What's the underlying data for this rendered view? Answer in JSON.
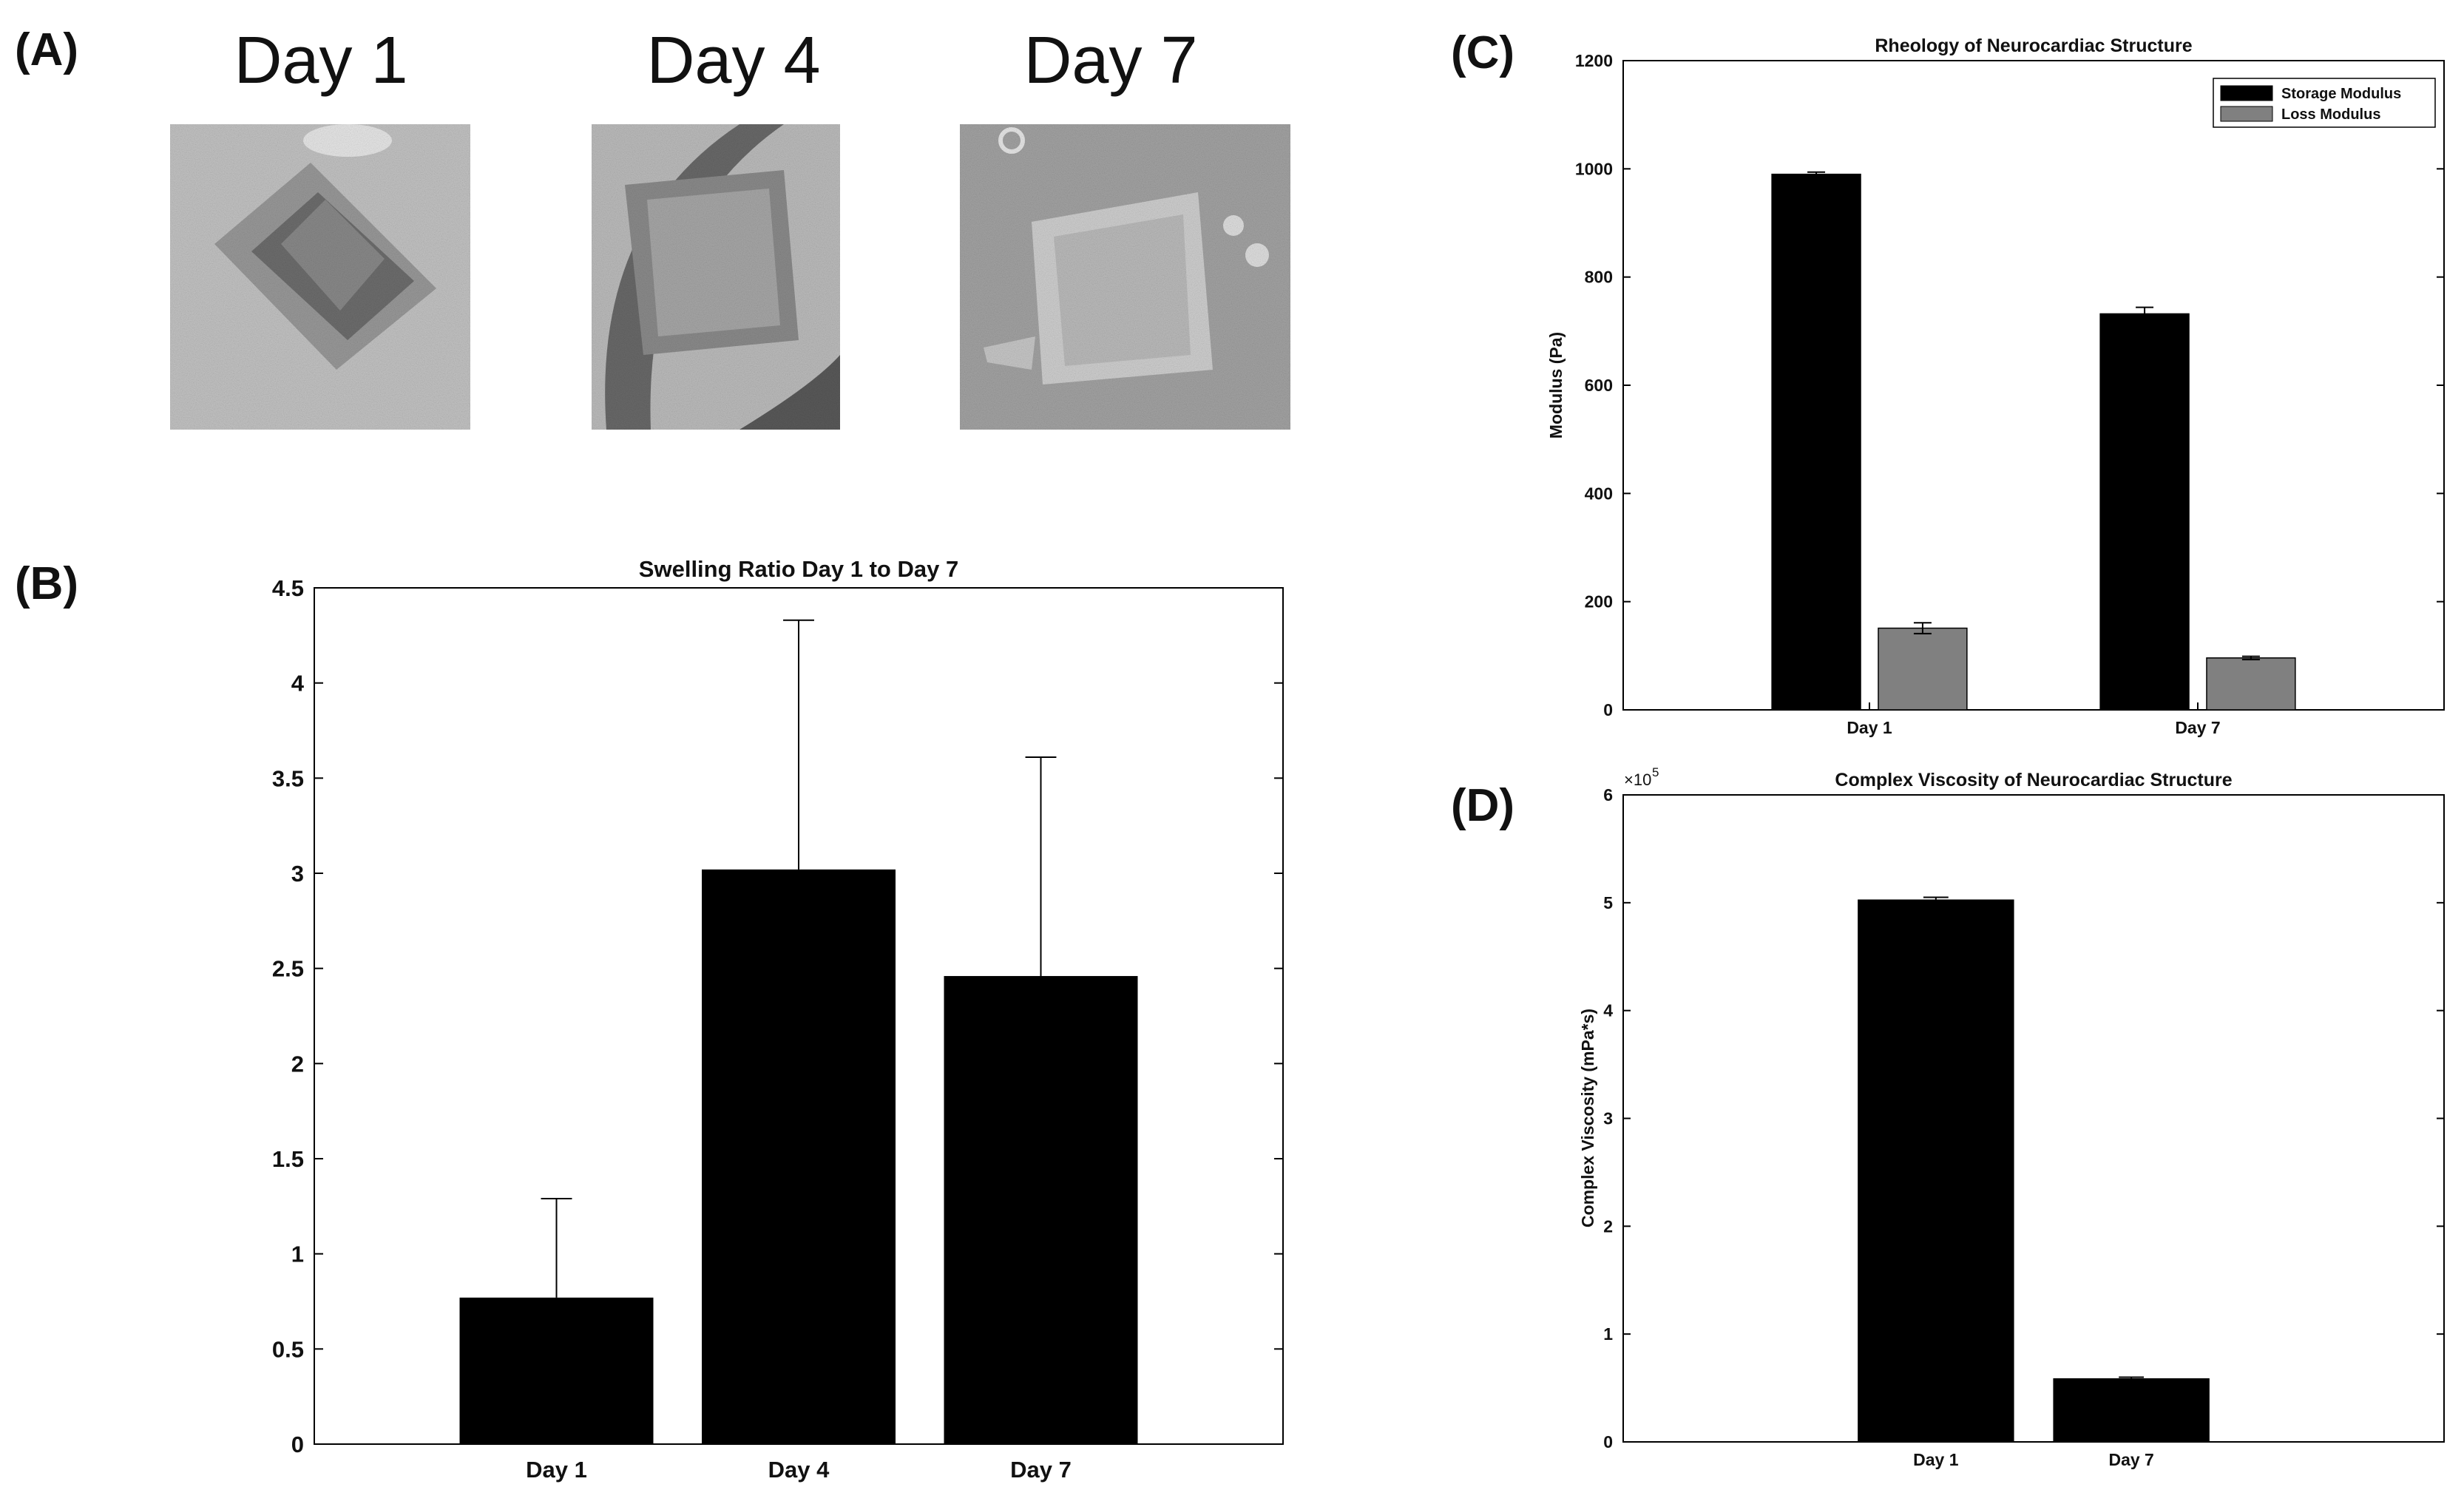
{
  "panels": {
    "a_label": "(A)",
    "b_label": "(B)",
    "c_label": "(C)",
    "d_label": "(D)"
  },
  "photos": [
    {
      "label": "Day 1"
    },
    {
      "label": "Day 4"
    },
    {
      "label": "Day 7"
    }
  ],
  "chart_data": [
    {
      "id": "B",
      "type": "bar",
      "title": "Swelling Ratio Day 1 to Day 7",
      "xlabel": "",
      "ylabel": "",
      "categories": [
        "Day 1",
        "Day 4",
        "Day 7"
      ],
      "values": [
        0.77,
        3.02,
        2.46
      ],
      "errors": [
        0.52,
        1.31,
        1.15
      ],
      "ylim": [
        0,
        4.5
      ],
      "yticks": [
        "0",
        "0.5",
        "1",
        "1.5",
        "2",
        "2.5",
        "3",
        "3.5",
        "4",
        "4.5"
      ],
      "colors": {
        "bar": "#000000"
      }
    },
    {
      "id": "C",
      "type": "bar",
      "title": "Rheology of Neurocardiac Structure",
      "xlabel": "",
      "ylabel": "Modulus (Pa)",
      "categories": [
        "Day 1",
        "Day 7"
      ],
      "series": [
        {
          "name": "Storage Modulus",
          "values": [
            990,
            732
          ],
          "errors": [
            4,
            12
          ],
          "color": "#000000"
        },
        {
          "name": "Loss Modulus",
          "values": [
            151,
            96
          ],
          "errors": [
            10,
            3
          ],
          "color": "#808080"
        }
      ],
      "ylim": [
        0,
        1200
      ],
      "yticks": [
        "0",
        "200",
        "400",
        "600",
        "800",
        "1000",
        "1200"
      ],
      "legend": "top-right"
    },
    {
      "id": "D",
      "type": "bar",
      "title": "Complex Viscosity of Neurocardiac Structure",
      "xlabel": "",
      "ylabel": "Complex Viscosity (mPa*s)",
      "categories": [
        "Day 1",
        "Day 7"
      ],
      "values": [
        5.03,
        0.59
      ],
      "errors": [
        0.02,
        0.01
      ],
      "ylim": [
        0,
        6
      ],
      "yticks": [
        "0",
        "1",
        "2",
        "3",
        "4",
        "5",
        "6"
      ],
      "scale_base": "×10",
      "scale_exp": "5",
      "colors": {
        "bar": "#000000"
      }
    }
  ]
}
